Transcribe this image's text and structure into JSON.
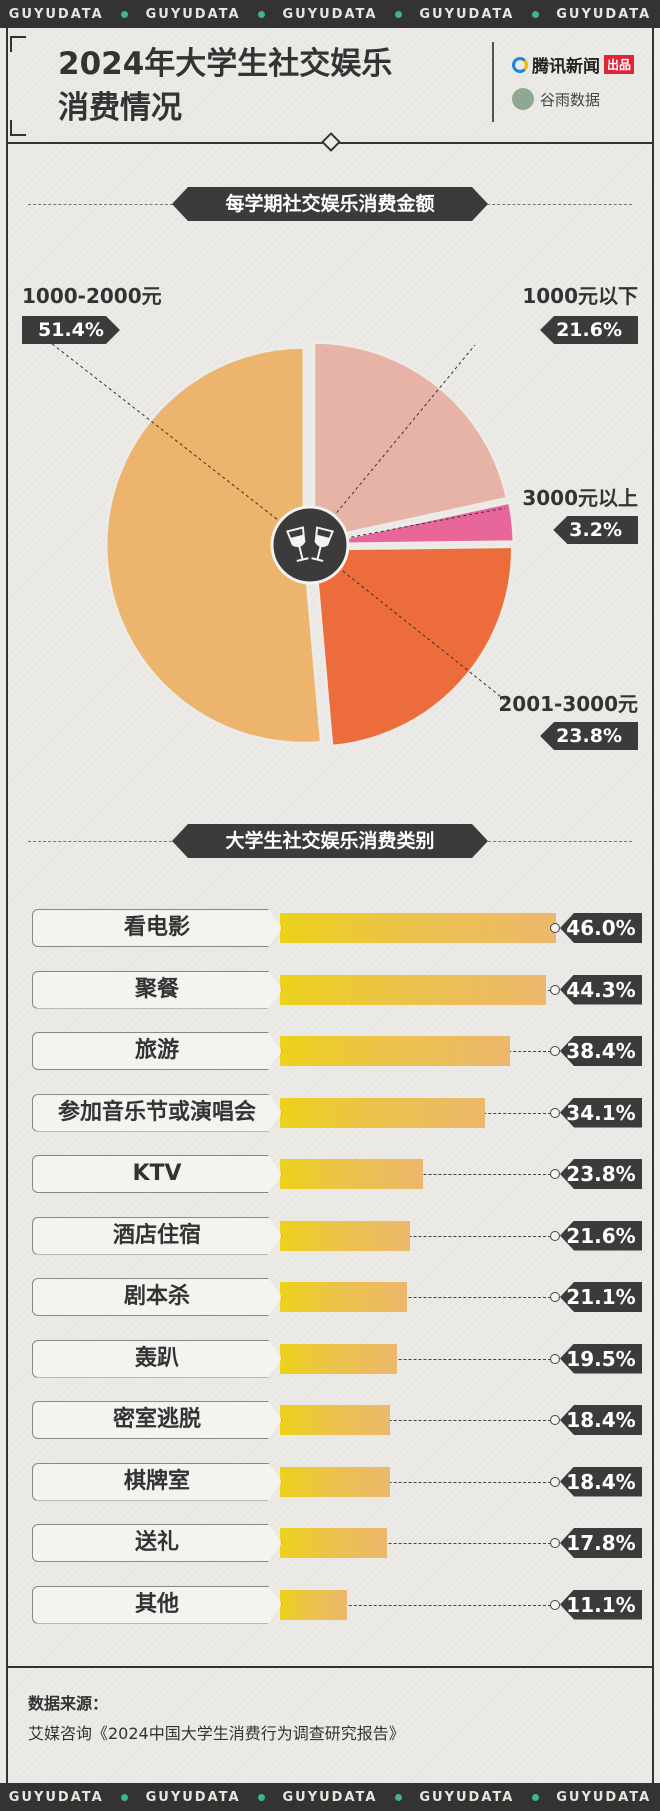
{
  "band": {
    "text": "GUYUDATA"
  },
  "header": {
    "title_line1": "2024年大学生社交娱乐",
    "title_line2": "消费情况",
    "brand_tencent": "腾讯新闻",
    "brand_tencent_tag": "出品",
    "brand_guyu": "谷雨数据"
  },
  "section1": {
    "title": "每学期社交娱乐消费金额"
  },
  "section2": {
    "title": "大学生社交娱乐消费类别"
  },
  "source": {
    "title": "数据来源：",
    "text": "艾媒咨询《2024中国大学生消费行为调查研究报告》"
  },
  "chart_data": [
    {
      "type": "pie",
      "title": "每学期社交娱乐消费金额",
      "slices": [
        {
          "label": "1000元以下",
          "value": 21.6,
          "display": "21.6%",
          "color": "#e6b3a6"
        },
        {
          "label": "3000元以上",
          "value": 3.2,
          "display": "3.2%",
          "color": "#e8669a"
        },
        {
          "label": "2001-3000元",
          "value": 23.8,
          "display": "23.8%",
          "color": "#ec6d3b"
        },
        {
          "label": "1000-2000元",
          "value": 51.4,
          "display": "51.4%",
          "color": "#ecb46c"
        }
      ],
      "center_icon": "wine-glasses-icon"
    },
    {
      "type": "bar",
      "orientation": "horizontal",
      "title": "大学生社交娱乐消费类别",
      "xlim": [
        0,
        50
      ],
      "categories": [
        "看电影",
        "聚餐",
        "旅游",
        "参加音乐节或演唱会",
        "KTV",
        "酒店住宿",
        "剧本杀",
        "轰趴",
        "密室逃脱",
        "棋牌室",
        "送礼",
        "其他"
      ],
      "values": [
        46.0,
        44.3,
        38.4,
        34.1,
        23.8,
        21.6,
        21.1,
        19.5,
        18.4,
        18.4,
        17.8,
        11.1
      ],
      "value_labels": [
        "46.0%",
        "44.3%",
        "38.4%",
        "34.1%",
        "23.8%",
        "21.6%",
        "21.1%",
        "19.5%",
        "18.4%",
        "18.4%",
        "17.8%",
        "11.1%"
      ],
      "bar_gradient": [
        "#ecd21a",
        "#ecb86c"
      ]
    }
  ]
}
